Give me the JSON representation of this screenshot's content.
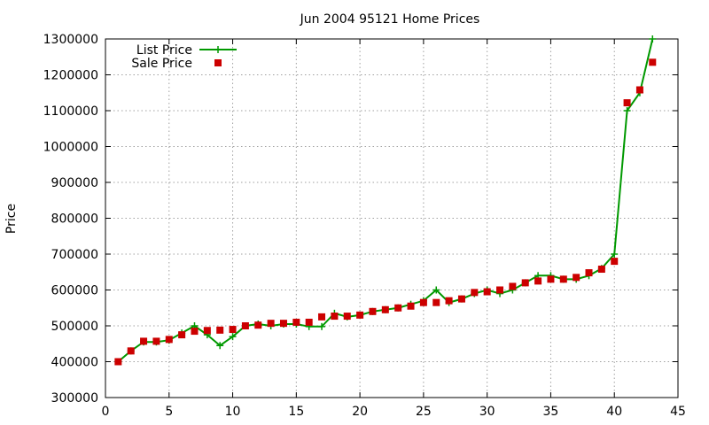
{
  "chart_data": {
    "type": "line",
    "title": "Jun 2004 95121 Home Prices",
    "xlabel": "",
    "ylabel": "Price",
    "xlim": [
      0,
      45
    ],
    "ylim": [
      300000,
      1300000
    ],
    "x_ticks": [
      0,
      5,
      10,
      15,
      20,
      25,
      30,
      35,
      40,
      45
    ],
    "y_ticks": [
      300000,
      400000,
      500000,
      600000,
      700000,
      800000,
      900000,
      1000000,
      1100000,
      1200000,
      1300000
    ],
    "grid": true,
    "legend_position": "top-left",
    "series": [
      {
        "name": "List Price",
        "style": "lines+plus",
        "color": "#009900",
        "x": [
          1,
          2,
          3,
          4,
          5,
          6,
          7,
          8,
          9,
          10,
          11,
          12,
          13,
          14,
          15,
          16,
          17,
          18,
          19,
          20,
          21,
          22,
          23,
          24,
          25,
          26,
          27,
          28,
          29,
          30,
          31,
          32,
          33,
          34,
          35,
          36,
          37,
          38,
          39,
          40,
          41,
          42,
          43
        ],
        "values": [
          400000,
          430000,
          455000,
          455000,
          460000,
          480000,
          500000,
          475000,
          445000,
          470000,
          500000,
          505000,
          500000,
          505000,
          505000,
          498000,
          498000,
          535000,
          525000,
          530000,
          540000,
          545000,
          550000,
          560000,
          570000,
          600000,
          565000,
          575000,
          590000,
          600000,
          590000,
          600000,
          620000,
          640000,
          640000,
          630000,
          630000,
          640000,
          660000,
          700000,
          1100000,
          1150000,
          1300000
        ]
      },
      {
        "name": "Sale Price",
        "style": "points-square",
        "color": "#cc0000",
        "x": [
          1,
          2,
          3,
          4,
          5,
          6,
          7,
          8,
          9,
          10,
          11,
          12,
          13,
          14,
          15,
          16,
          17,
          18,
          19,
          20,
          21,
          22,
          23,
          24,
          25,
          26,
          27,
          28,
          29,
          30,
          31,
          32,
          33,
          34,
          35,
          36,
          37,
          38,
          39,
          40,
          41,
          42,
          43
        ],
        "values": [
          400000,
          430000,
          457000,
          457000,
          462000,
          475000,
          485000,
          487000,
          488000,
          490000,
          500000,
          502000,
          507000,
          507000,
          510000,
          510000,
          525000,
          527000,
          527000,
          530000,
          540000,
          545000,
          550000,
          555000,
          565000,
          565000,
          570000,
          575000,
          593000,
          595000,
          600000,
          610000,
          620000,
          625000,
          630000,
          630000,
          635000,
          648000,
          658000,
          680000,
          1122000,
          1158000,
          1235000
        ]
      }
    ]
  }
}
